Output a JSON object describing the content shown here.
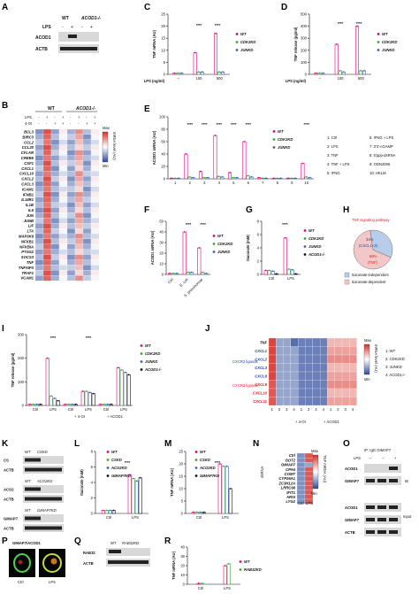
{
  "panel_letters": [
    "A",
    "B",
    "C",
    "D",
    "E",
    "F",
    "G",
    "H",
    "I",
    "J",
    "K",
    "L",
    "M",
    "N",
    "O",
    "P",
    "Q",
    "R"
  ],
  "panelA": {
    "genotypes": [
      "WT",
      "ACOD1-/-"
    ],
    "treatment": "LPS",
    "signs": [
      "-",
      "+",
      "-",
      "+"
    ],
    "blots": [
      "ACOD1",
      "ACTB"
    ]
  },
  "panelB": {
    "groups": [
      "WT",
      "ACOD1-/-"
    ],
    "rows": [
      "LPS",
      "4-OI"
    ],
    "genes": [
      "BCL3",
      "BIRC3",
      "CCL2",
      "CCL20",
      "CFLAR",
      "CREB5",
      "CSF1",
      "CXCL1",
      "CXCL10",
      "CXCL2",
      "CXCL3",
      "ICAM1",
      "IFNB1",
      "IL18R1",
      "IL1B",
      "IL6",
      "JUN",
      "JUNB",
      "LIF",
      "LTA",
      "MAP3K8",
      "NFKB1",
      "NFKBIA",
      "PTGS2",
      "SOCS3",
      "TNF",
      "TNFAIP3",
      "TRAF1",
      "VCAM1"
    ],
    "legend_title": "mRNA level (AU)",
    "legend_max": "Max",
    "legend_min": "Min"
  },
  "panelC": {
    "ylabel": "TNF mRNA (AU)",
    "xlabel": "LPS (ng/ml)",
    "xticks": [
      "–",
      "100",
      "500"
    ],
    "yticks": [
      "0",
      "5",
      "10",
      "15",
      "20",
      "25"
    ],
    "legend": [
      "WT",
      "CDK2KD",
      "JUNKD"
    ],
    "stars": "****"
  },
  "panelD": {
    "ylabel": "TNF release (pg/ml)",
    "xlabel": "LPS (ng/ml)",
    "xticks": [
      "–",
      "100",
      "500"
    ],
    "yticks": [
      "0",
      "100",
      "200",
      "300",
      "400",
      "500"
    ],
    "legend": [
      "WT",
      "CDK2KD",
      "JUNKD"
    ],
    "stars": "****"
  },
  "panelE": {
    "ylabel": "ACOD1 mRNA (AU)",
    "xticks": [
      "1",
      "2",
      "3",
      "4",
      "5",
      "6",
      "7",
      "8",
      "9",
      "10"
    ],
    "yticks": [
      "0",
      "20",
      "40",
      "60",
      "80",
      "100"
    ],
    "legend": [
      "WT",
      "CDK2KD",
      "JUNKD"
    ],
    "key": [
      "1: Ctrl",
      "2: LPS",
      "3: TNF",
      "4: TNF + LPS",
      "5: IFNG",
      "6: IFNG + LPS",
      "7: 3'3'-cGAMP",
      "8: 5'ppp-dsRNA",
      "9: ODN2006",
      "10: HKLM"
    ],
    "stars": "****"
  },
  "panelF": {
    "ylabel": "ACOD1 mRNA (AU)",
    "xticks": [
      "Ctrl",
      "E. coli",
      "S. pneumoniae"
    ],
    "yticks": [
      "0",
      "10",
      "20",
      "30",
      "40",
      "50"
    ],
    "legend": [
      "WT",
      "CDK2KD",
      "JUNKD"
    ],
    "stars": "****"
  },
  "panelG": {
    "ylabel": "Itaconate (mM)",
    "xticks": [
      "Ctrl",
      "LPS"
    ],
    "yticks": [
      "0",
      "2",
      "4",
      "6",
      "8"
    ],
    "legend": [
      "WT",
      "CDK2KD",
      "JUNKD",
      "ACOD1-/-"
    ],
    "stars": "****"
  },
  "panelH": {
    "title": "TNF signaling pathway",
    "slices": [
      {
        "label": "34%",
        "sub": "(CXCL1–3)",
        "value": 34,
        "color": "#b8cdea"
      },
      {
        "label": "66%",
        "sub": "(TNF)",
        "value": 66,
        "color": "#f2c7c7"
      }
    ],
    "legend": [
      "Itaconate-independent",
      "Itaconate-dependent"
    ]
  },
  "panelI": {
    "ylabel": "TNF release (pg/ml)",
    "xticks": [
      "Ctrl",
      "LPS",
      "Ctrl",
      "LPS",
      "Ctrl",
      "LPS"
    ],
    "group_labels": [
      "+ 4-OI",
      "+ ACOD1"
    ],
    "yticks": [
      "0",
      "100",
      "200",
      "300"
    ],
    "legend": [
      "WT",
      "CDK2KD",
      "JUNKD",
      "ACOD1-/-"
    ],
    "stars": "****"
  },
  "panelJ": {
    "genes": [
      "TNF",
      "CXCL1",
      "CXCL2",
      "CXCL3",
      "CXCL8",
      "CXCL9",
      "CXCL10",
      "CXCL11"
    ],
    "group1": "CXCR2 ligands",
    "group2": "CXCR3 ligands",
    "cols": [
      "1",
      "2",
      "3",
      "4",
      "1",
      "2",
      "3",
      "4",
      "1",
      "2",
      "3",
      "4"
    ],
    "col_groups": [
      "+ 4-OI",
      "+ ACOD1"
    ],
    "legend_title": "mRNA level (AU)",
    "legend_max": "Max",
    "legend_min": "Min",
    "key": [
      "1: WT",
      "2: CDK2KD",
      "3: JUNKD",
      "4: ACOD1-/-"
    ]
  },
  "panelK": {
    "blocks": [
      {
        "labels": [
          "WT",
          "CSKD"
        ],
        "blots": [
          "CS",
          "ACTB"
        ]
      },
      {
        "labels": [
          "WT",
          "ACO2KD"
        ],
        "blots": [
          "ACO2",
          "ACTB"
        ]
      },
      {
        "labels": [
          "WT",
          "GIMAP7KD"
        ],
        "blots": [
          "GIMAP7",
          "ACTB"
        ]
      }
    ]
  },
  "panelL": {
    "ylabel": "Itaconate (mM)",
    "xticks": [
      "Ctrl",
      "LPS"
    ],
    "yticks": [
      "0",
      "2",
      "4",
      "6",
      "8"
    ],
    "legend": [
      "WT",
      "CSKD",
      "ACO2KD",
      "GIMAP7KD"
    ],
    "stars": "****"
  },
  "panelM": {
    "ylabel": "TNF mRNA (AU)",
    "xticks": [
      "Ctrl",
      "LPS"
    ],
    "yticks": [
      "0",
      "5",
      "10",
      "15",
      "20",
      "25"
    ],
    "legend": [
      "WT",
      "CSKD",
      "ACO2KD",
      "GIMAP7KD"
    ],
    "stars": "****"
  },
  "panelN": {
    "side_label": "shRNA",
    "genes": [
      "Ctrl",
      "GOT2",
      "GIMAP7",
      "CPA6",
      "COMT",
      "CYP26A1",
      "ZC3H12A",
      "LRRC66",
      "IFIT1",
      "ARSI",
      "LYG2"
    ],
    "legend_title": "TNF mRNA (AU)",
    "legend_max": "Max",
    "legend_min": "Min",
    "cols": [
      "Ctrl",
      "LPS"
    ]
  },
  "panelO": {
    "header": "IP: IgG  GIMAP7",
    "lps_row": [
      "LPS",
      "–",
      "–",
      "+"
    ],
    "ib_label": "IB",
    "input_label": "Input",
    "blots": [
      "ACOD1",
      "GIMAP7",
      "ACOD1",
      "GIMAP7",
      "ACTB"
    ]
  },
  "panelP": {
    "stain": "GIMAP7/ACOD1",
    "labels": [
      "Ctrl",
      "LPS"
    ]
  },
  "panelQ": {
    "labels": [
      "WT",
      "RAB32KD"
    ],
    "blots": [
      "RAB32",
      "ACTB"
    ]
  },
  "panelR": {
    "ylabel": "TNF mRNA (AU)",
    "xticks": [
      "Ctrl",
      "LPS"
    ],
    "yticks": [
      "0",
      "10",
      "20",
      "30",
      "40"
    ],
    "legend": [
      "WT",
      "RAB32KD"
    ]
  },
  "colors": {
    "wt": "#e4007f",
    "cdk2": "#3aa53a",
    "jun": "#3a5fc0",
    "acod1": "#111111",
    "heat_high": "#d73027",
    "heat_low": "#2b4a9a"
  }
}
